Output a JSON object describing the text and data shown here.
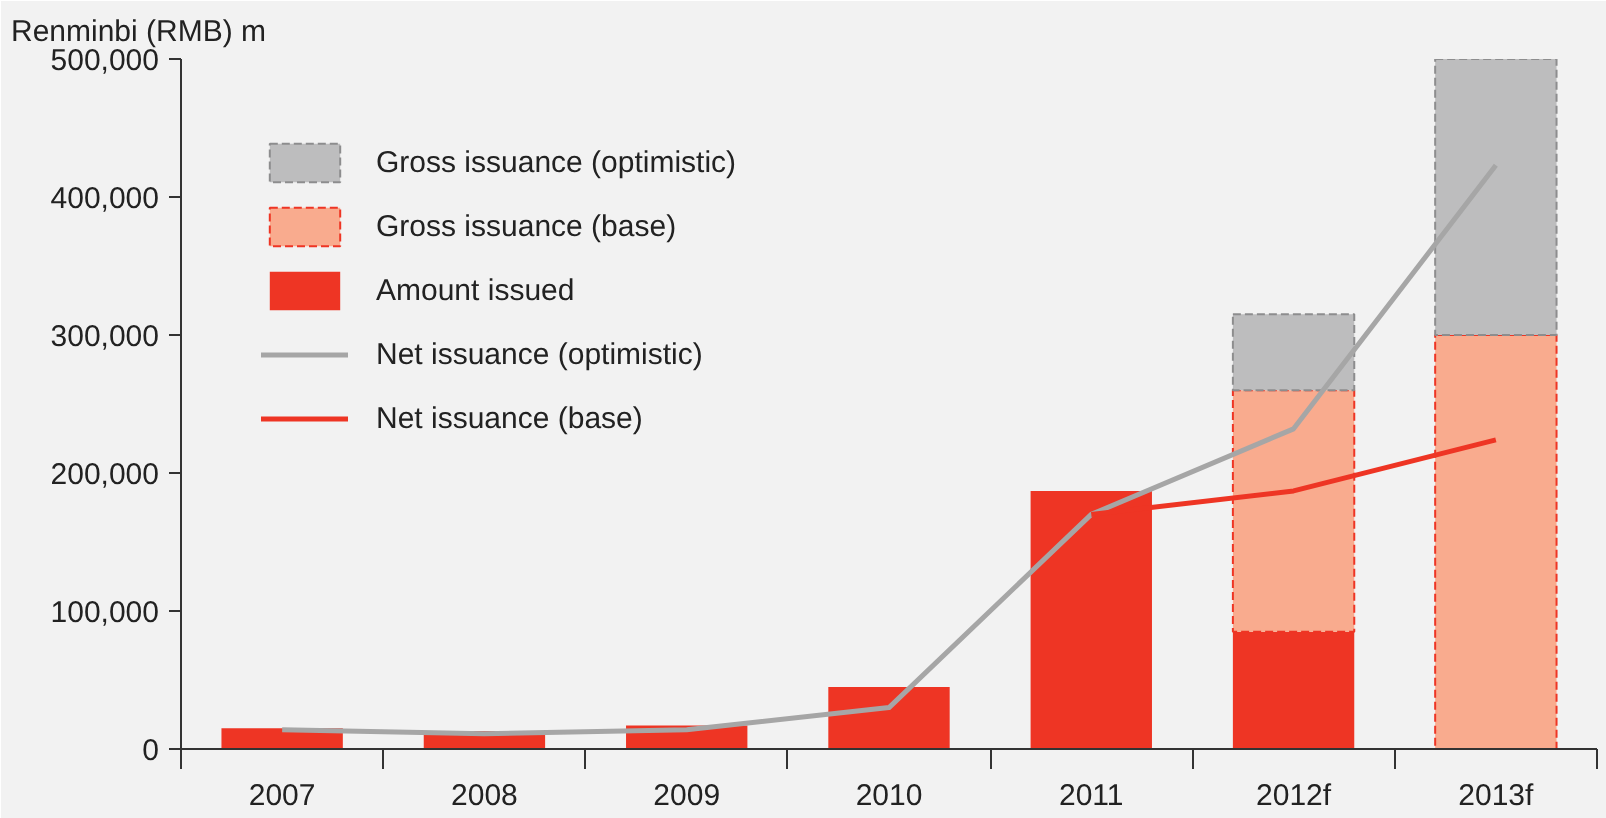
{
  "chart_data": {
    "type": "bar",
    "ylabel": "Renminbi (RMB) m",
    "categories": [
      "2007",
      "2008",
      "2009",
      "2010",
      "2011",
      "2012f",
      "2013f"
    ],
    "stacked": true,
    "legend": "top left",
    "grid": false,
    "ylim": [
      0,
      500000
    ],
    "yticks": [
      0,
      {
        "value": 100000,
        "label": "100,000"
      },
      {
        "value": 200000,
        "label": "200,000"
      },
      {
        "value": 300000,
        "label": "300,000"
      },
      {
        "value": 400000,
        "label": "400,000"
      },
      {
        "value": 500000,
        "label": "500,000"
      }
    ],
    "series": [
      {
        "name": "Amount issued",
        "color": "#ee3524",
        "values": [
          15000,
          13000,
          17000,
          45000,
          187000,
          85000,
          null
        ]
      },
      {
        "name": "Gross issuance (base)",
        "color": "#f9ab8e",
        "line_style": "dashed",
        "values": [
          null,
          null,
          null,
          null,
          null,
          175000,
          300000
        ]
      },
      {
        "name": "Gross issuance (optimistic)",
        "color": "#bdbdbe",
        "line_style": "dashed",
        "values": [
          null,
          null,
          null,
          null,
          null,
          55000,
          200000
        ]
      },
      {
        "name": "Net issuance (optimistic)",
        "type": "line",
        "color": "#a6a6a6",
        "values": [
          14000,
          11000,
          14000,
          30000,
          170000,
          232000,
          423000
        ]
      },
      {
        "name": "Net issuance (base)",
        "type": "line",
        "color": "#ee3524",
        "values": [
          null,
          null,
          null,
          null,
          170000,
          187000,
          224000
        ]
      }
    ]
  }
}
